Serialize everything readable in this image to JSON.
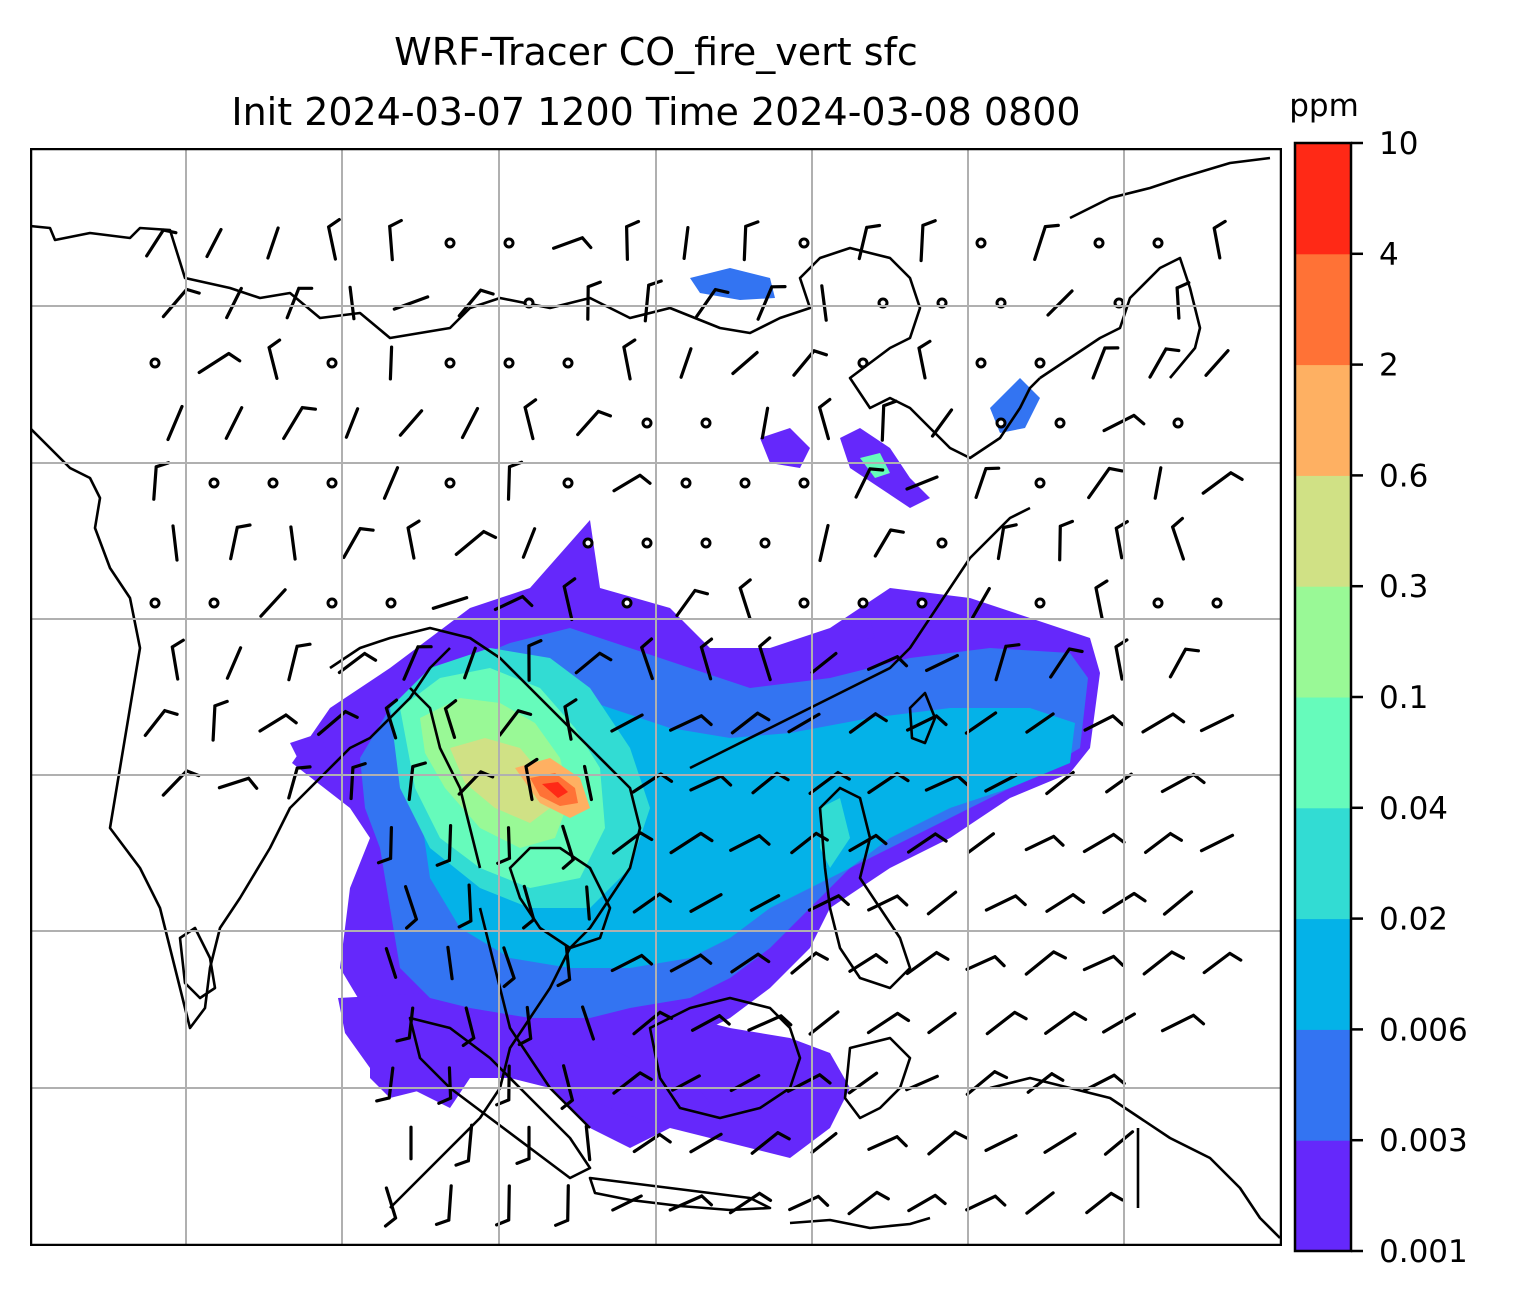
{
  "title": {
    "line1": "WRF-Tracer CO_fire_vert sfc",
    "line2": "Init 2024-03-07 1200 Time 2024-03-08 0800"
  },
  "colorbar": {
    "unit": "ppm",
    "ticks": [
      "0.001",
      "0.003",
      "0.006",
      "0.02",
      "0.04",
      "0.1",
      "0.3",
      "0.6",
      "2",
      "4",
      "10"
    ],
    "colors": [
      "#6528fb",
      "#3374f2",
      "#04b2e8",
      "#32dcd3",
      "#66fbbb",
      "#99f996",
      "#d0e185",
      "#feb062",
      "#ff7236",
      "#ff2916"
    ]
  },
  "map": {
    "gridlines": true,
    "grid_color": "#b0b0b0",
    "coastline_color": "#000000"
  }
}
